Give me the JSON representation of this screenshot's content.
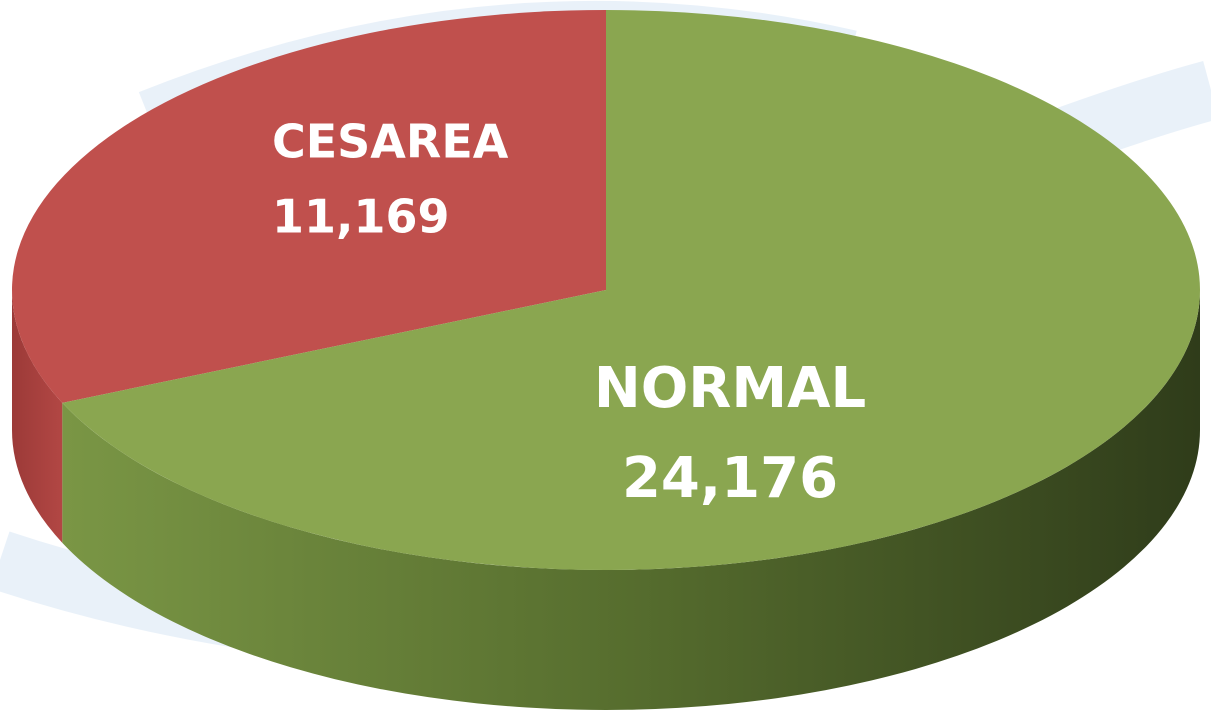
{
  "chart_data": {
    "type": "pie",
    "categories": [
      "CESAREA",
      "NORMAL"
    ],
    "values": [
      11169,
      24176
    ],
    "value_labels": [
      "11,169",
      "24,176"
    ],
    "colors": [
      "#c0504d",
      "#8aa650"
    ]
  }
}
